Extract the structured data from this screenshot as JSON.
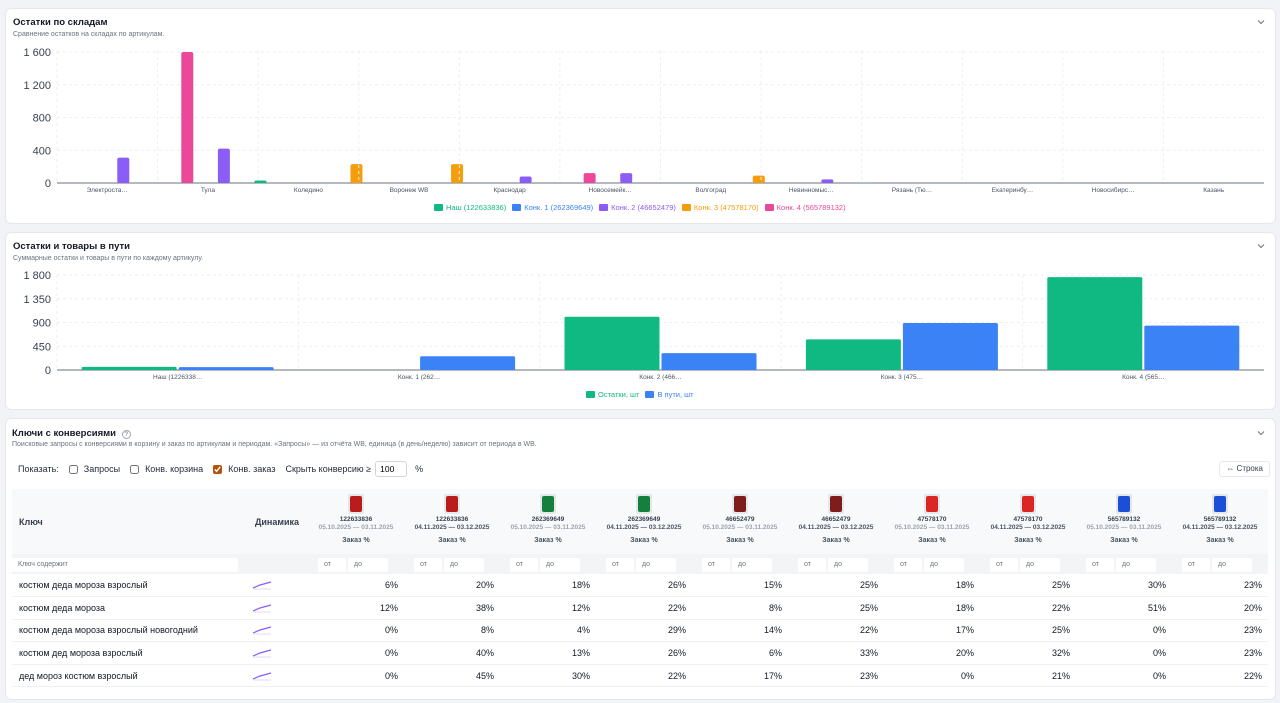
{
  "section1": {
    "title": "Остатки по складам",
    "subtitle": "Сравнение остатков на складах по артикулам.",
    "chart_data": {
      "type": "bar",
      "yticks": [
        "0",
        "400",
        "800",
        "1 200",
        "1 600"
      ],
      "ylim": [
        0,
        1650
      ],
      "categories": [
        "Электроста…",
        "Тула",
        "Коледино",
        "Воронеж WB",
        "Краснодар",
        "Новосемейк…",
        "Волгоград",
        "Невинномыс…",
        "Рязань (Тю…",
        "Екатеринбу…",
        "Новосибирс…",
        "Казань"
      ],
      "series": [
        {
          "name": "Наш (122633836)",
          "color": "#10b981",
          "values": [
            0,
            0,
            30,
            0,
            0,
            0,
            0,
            0,
            5,
            0,
            0,
            0
          ]
        },
        {
          "name": "Конк. 1 (262369649)",
          "color": "#3b82f6",
          "values": [
            0,
            0,
            0,
            0,
            0,
            0,
            0,
            0,
            0,
            0,
            0,
            0
          ]
        },
        {
          "name": "Конк. 2 (46652479)",
          "color": "#8b5cf6",
          "values": [
            310,
            420,
            0,
            0,
            80,
            120,
            0,
            45,
            0,
            0,
            0,
            0
          ]
        },
        {
          "name": "Конк. 3 (47578170)",
          "color": "#f59e0b",
          "values": [
            0,
            0,
            230,
            230,
            0,
            0,
            90,
            0,
            0,
            0,
            0,
            0
          ]
        },
        {
          "name": "Конк. 4 (565789132)",
          "color": "#ec4899",
          "values": [
            1600,
            0,
            0,
            0,
            120,
            0,
            0,
            0,
            0,
            0,
            0,
            0
          ]
        }
      ]
    }
  },
  "section2": {
    "title": "Остатки и товары в пути",
    "subtitle": "Суммарные остатки и товары в пути по каждому артикулу.",
    "chart_data": {
      "type": "bar",
      "yticks": [
        "0",
        "450",
        "900",
        "1 350",
        "1 800"
      ],
      "ylim": [
        0,
        1800
      ],
      "categories": [
        "Наш (1226338…",
        "Конк. 1 (262…",
        "Конк. 2 (466…",
        "Конк. 3 (475…",
        "Конк. 4 (565…"
      ],
      "series": [
        {
          "name": "Остатки, шт",
          "color": "#10b981",
          "values": [
            60,
            0,
            1010,
            580,
            1760
          ]
        },
        {
          "name": "В пути, шт",
          "color": "#3b82f6",
          "values": [
            55,
            260,
            320,
            890,
            840
          ]
        }
      ]
    }
  },
  "section3": {
    "title": "Ключи с конверсиями",
    "subtitle": "Поисковые запросы с конверсиями в корзину и заказ по артикулам и периодам. «Запросы» — из отчёта WB, единица (в день/неделю) зависит от периода в WB.",
    "controls": {
      "show_label": "Показать:",
      "opt_queries": "Запросы",
      "opt_cart": "Конв. корзина",
      "opt_order": "Конв. заказ",
      "hide_label": "Скрыть конверсию ≥",
      "hide_value": "100",
      "percent": "%",
      "row_button": "⇔ Строка"
    },
    "table": {
      "col_key": "Ключ",
      "col_dyn": "Динамика",
      "filter_placeholder": "Ключ содержит",
      "from": "от",
      "to": "до",
      "metric": "Заказ %",
      "products": [
        {
          "id": "122633836",
          "period": "05.10.2025 — 03.11.2025",
          "color": "#b91c1c",
          "current": false
        },
        {
          "id": "122633836",
          "period": "04.11.2025 — 03.12.2025",
          "color": "#b91c1c",
          "current": true
        },
        {
          "id": "262369649",
          "period": "05.10.2025 — 03.11.2025",
          "color": "#15803d",
          "current": false
        },
        {
          "id": "262369649",
          "period": "04.11.2025 — 03.12.2025",
          "color": "#15803d",
          "current": true
        },
        {
          "id": "46652479",
          "period": "05.10.2025 — 03.11.2025",
          "color": "#7f1d1d",
          "current": false
        },
        {
          "id": "46652479",
          "period": "04.11.2025 — 03.12.2025",
          "color": "#7f1d1d",
          "current": true
        },
        {
          "id": "47578170",
          "period": "05.10.2025 — 03.11.2025",
          "color": "#dc2626",
          "current": false
        },
        {
          "id": "47578170",
          "period": "04.11.2025 — 03.12.2025",
          "color": "#dc2626",
          "current": true
        },
        {
          "id": "565789132",
          "period": "05.10.2025 — 03.11.2025",
          "color": "#1d4ed8",
          "current": false
        },
        {
          "id": "565789132",
          "period": "04.11.2025 — 03.12.2025",
          "color": "#1d4ed8",
          "current": true
        }
      ],
      "rows": [
        {
          "key": "костюм деда мороза взрослый",
          "values": [
            "6%",
            "20%",
            "18%",
            "26%",
            "15%",
            "25%",
            "18%",
            "25%",
            "30%",
            "23%"
          ]
        },
        {
          "key": "костюм деда мороза",
          "values": [
            "12%",
            "38%",
            "12%",
            "22%",
            "8%",
            "25%",
            "18%",
            "22%",
            "51%",
            "20%"
          ]
        },
        {
          "key": "костюм деда мороза взрослый новогодний",
          "values": [
            "0%",
            "8%",
            "4%",
            "29%",
            "14%",
            "22%",
            "17%",
            "25%",
            "0%",
            "23%"
          ]
        },
        {
          "key": "костюм дед мороза взрослый",
          "values": [
            "0%",
            "40%",
            "13%",
            "26%",
            "6%",
            "33%",
            "20%",
            "32%",
            "0%",
            "23%"
          ]
        },
        {
          "key": "дед мороз костюм взрослый",
          "values": [
            "0%",
            "45%",
            "30%",
            "22%",
            "17%",
            "23%",
            "0%",
            "21%",
            "0%",
            "22%"
          ]
        }
      ]
    }
  }
}
